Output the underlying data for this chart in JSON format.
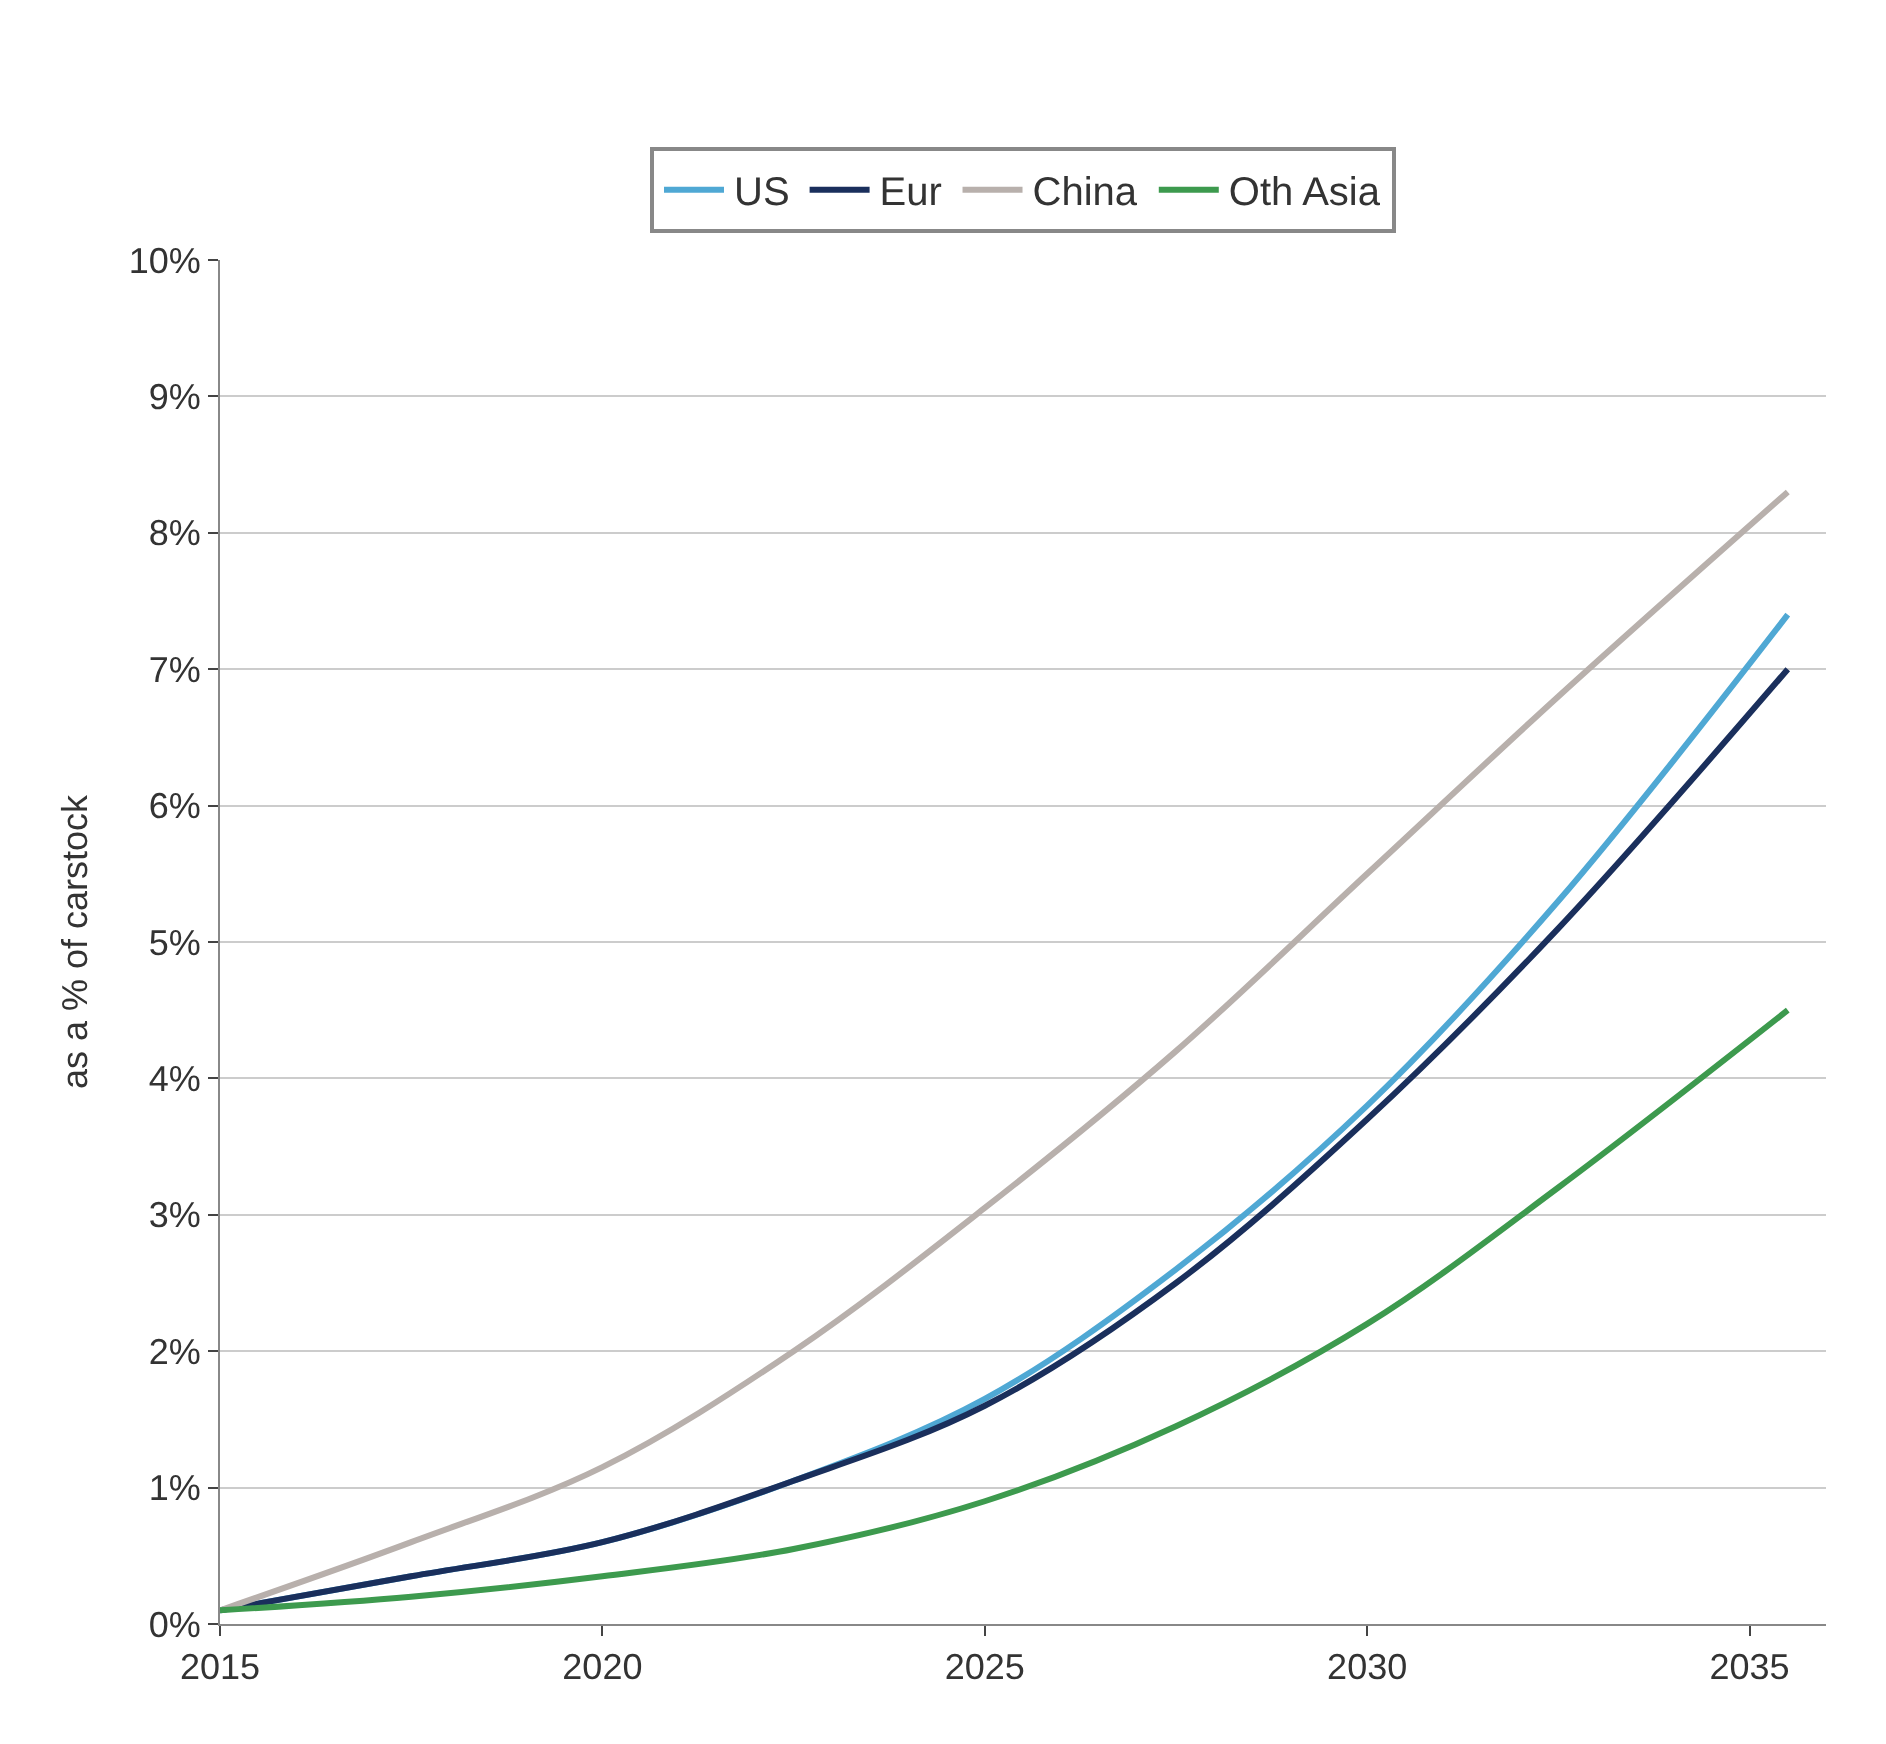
{
  "chart_data": {
    "type": "line",
    "ylabel": "as a % of carstock",
    "x": [
      2015,
      2017.5,
      2020,
      2022.5,
      2025,
      2027.5,
      2030,
      2032.5,
      2035.5
    ],
    "series": [
      {
        "name": "US",
        "color": "#4fa8d4",
        "values": [
          0.1,
          0.35,
          0.6,
          1.05,
          1.65,
          2.6,
          3.8,
          5.3,
          7.4
        ]
      },
      {
        "name": "Eur",
        "color": "#1a2f5c",
        "values": [
          0.1,
          0.35,
          0.6,
          1.05,
          1.6,
          2.5,
          3.7,
          5.1,
          7.0
        ]
      },
      {
        "name": "China",
        "color": "#b8b0ac",
        "values": [
          0.1,
          0.6,
          1.15,
          2.0,
          3.05,
          4.2,
          5.5,
          6.8,
          8.3
        ]
      },
      {
        "name": "Oth Asia",
        "color": "#3d9a4e",
        "values": [
          0.1,
          0.2,
          0.35,
          0.55,
          0.9,
          1.45,
          2.2,
          3.2,
          4.5
        ]
      }
    ],
    "xlim": [
      2015,
      2036
    ],
    "xticks": [
      2015,
      2020,
      2025,
      2030,
      2035
    ],
    "ylim": [
      0,
      10
    ],
    "yticks": [
      {
        "value": 0,
        "label": "0%"
      },
      {
        "value": 1,
        "label": "1%"
      },
      {
        "value": 2,
        "label": "2%"
      },
      {
        "value": 3,
        "label": "3%"
      },
      {
        "value": 4,
        "label": "4%"
      },
      {
        "value": 5,
        "label": "5%"
      },
      {
        "value": 6,
        "label": "6%"
      },
      {
        "value": 7,
        "label": "7%"
      },
      {
        "value": 8,
        "label": "8%"
      },
      {
        "value": 9,
        "label": "9%"
      },
      {
        "value": 10,
        "label": "10%"
      }
    ],
    "grid": "y",
    "legend": "top",
    "marker": "none",
    "line_style": "solid"
  }
}
